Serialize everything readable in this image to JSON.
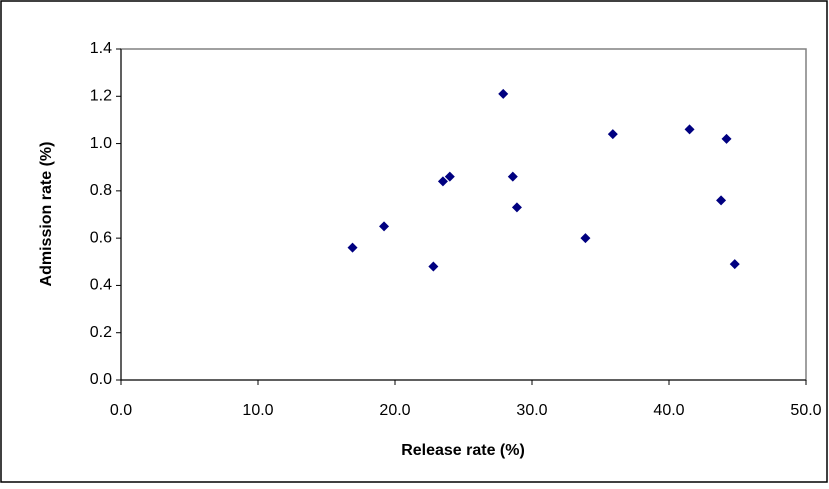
{
  "chart_data": {
    "type": "scatter",
    "x_label": "Release rate (%)",
    "y_label": "Admission rate (%)",
    "color": "#000080",
    "x": [
      16.9,
      19.2,
      22.8,
      23.5,
      24.0,
      27.9,
      28.6,
      28.9,
      33.9,
      35.9,
      41.5,
      44.2,
      43.8,
      44.8
    ],
    "values": [
      0.56,
      0.65,
      0.48,
      0.84,
      0.86,
      1.21,
      0.86,
      0.73,
      0.6,
      1.04,
      1.06,
      1.02,
      0.76,
      0.49
    ],
    "xlim": [
      0,
      50
    ],
    "xticks": [
      {
        "value": 0,
        "label": "0.0"
      },
      {
        "value": 10,
        "label": "10.0"
      },
      {
        "value": 20,
        "label": "20.0"
      },
      {
        "value": 30,
        "label": "30.0"
      },
      {
        "value": 40,
        "label": "40.0"
      },
      {
        "value": 50,
        "label": "50.0"
      }
    ],
    "ylim": [
      0,
      1.4
    ],
    "yticks": [
      {
        "value": 0,
        "label": "0.0"
      },
      {
        "value": 0.2,
        "label": "0.2"
      },
      {
        "value": 0.4,
        "label": "0.4"
      },
      {
        "value": 0.6,
        "label": "0.6"
      },
      {
        "value": 0.8,
        "label": "0.8"
      },
      {
        "value": 1.0,
        "label": "1.0"
      },
      {
        "value": 1.2,
        "label": "1.2"
      },
      {
        "value": 1.4,
        "label": "1.4"
      }
    ],
    "grid": false
  }
}
